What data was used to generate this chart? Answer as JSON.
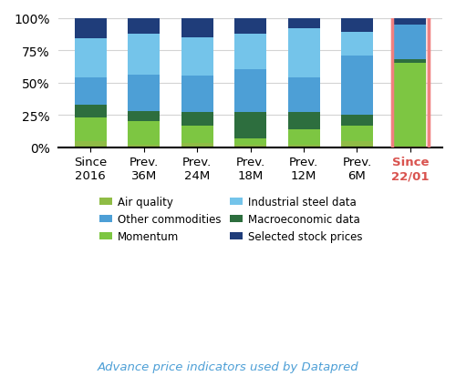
{
  "categories": [
    "Since\n2016",
    "Prev.\n36M",
    "Prev.\n24M",
    "Prev.\n18M",
    "Prev.\n12M",
    "Prev.\n6M",
    "Since\n22/01"
  ],
  "series": {
    "Air quality": [
      0.05,
      0.02,
      0.03,
      0.02,
      0.02,
      0.05,
      0.0
    ],
    "Momentum": [
      0.18,
      0.18,
      0.14,
      0.05,
      0.12,
      0.12,
      0.65
    ],
    "Macroeconomic data": [
      0.1,
      0.08,
      0.1,
      0.2,
      0.13,
      0.08,
      0.03
    ],
    "Other commodities": [
      0.21,
      0.28,
      0.28,
      0.33,
      0.27,
      0.46,
      0.27
    ],
    "Industrial steel data": [
      0.3,
      0.32,
      0.3,
      0.28,
      0.38,
      0.18,
      0.0
    ],
    "Selected stock prices": [
      0.16,
      0.12,
      0.15,
      0.12,
      0.08,
      0.11,
      0.05
    ]
  },
  "colors": {
    "Air quality": "#8fbc45",
    "Momentum": "#7dc642",
    "Macroeconomic data": "#2d6e3e",
    "Other commodities": "#4d9fd6",
    "Industrial steel data": "#74c4ea",
    "Selected stock prices": "#1f3d7a"
  },
  "highlight_last": true,
  "highlight_color": "#f08080",
  "highlight_label_color": "#d9534f",
  "background_color": "#ffffff",
  "yticks": [
    0,
    0.25,
    0.5,
    0.75,
    1.0
  ],
  "ytick_labels": [
    "0%",
    "25%",
    "50%",
    "75%",
    "100%"
  ],
  "subtitle": "Advance price indicators used by Datapred",
  "subtitle_color": "#4d9fd6",
  "subtitle_style": "italic"
}
